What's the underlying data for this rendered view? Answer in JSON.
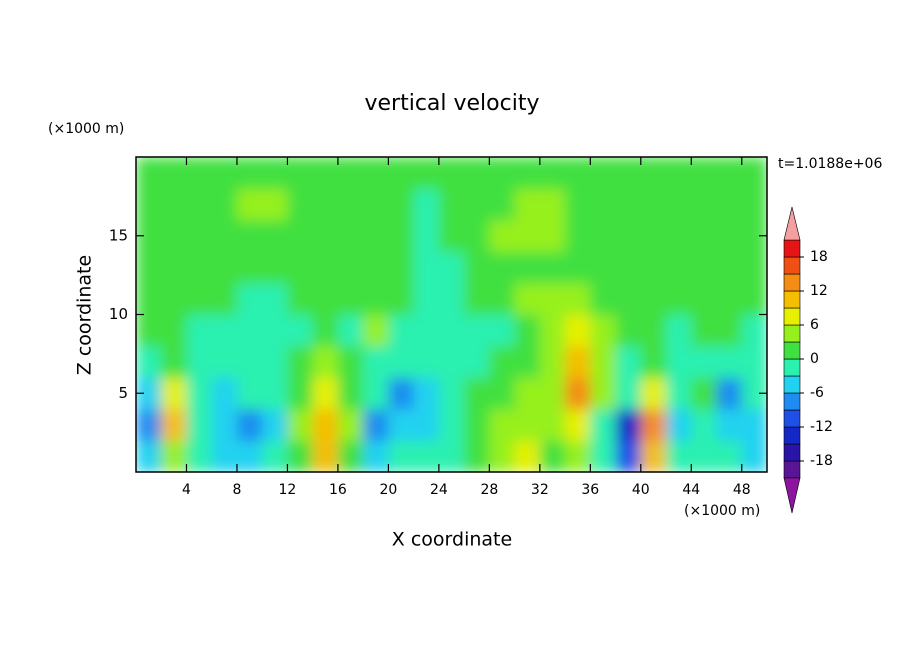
{
  "chart_data": {
    "type": "contour",
    "title": "vertical velocity",
    "xlabel": "X coordinate",
    "ylabel": "Z coordinate",
    "x_unit": "(×1000 m)",
    "y_unit": "(×1000 m)",
    "annotation": "t=1.0188e+06",
    "xlim": [
      0,
      50
    ],
    "ylim": [
      0,
      20
    ],
    "xticks": [
      4,
      8,
      12,
      16,
      20,
      24,
      28,
      32,
      36,
      40,
      44,
      48
    ],
    "yticks": [
      5,
      10,
      15
    ],
    "x": [
      1,
      3,
      5,
      7,
      9,
      11,
      13,
      15,
      17,
      19,
      21,
      23,
      25,
      27,
      29,
      31,
      33,
      35,
      37,
      39,
      41,
      43,
      45,
      47,
      49
    ],
    "z": [
      1,
      3,
      5,
      7,
      9,
      11,
      13,
      15,
      17,
      19
    ],
    "values": [
      [
        -6,
        5,
        -3,
        -4,
        -5,
        -3,
        2,
        9,
        2,
        -4,
        -3,
        -3,
        -2,
        1,
        4,
        7,
        2,
        4,
        -2,
        -10,
        11,
        -2,
        -1,
        -3,
        -4
      ],
      [
        -9,
        9,
        -3,
        -5,
        -8,
        -4,
        3,
        11,
        3,
        -7,
        -6,
        -5,
        -3,
        1,
        4,
        5,
        3,
        8,
        -1,
        -13,
        14,
        -4,
        -3,
        -4,
        -5
      ],
      [
        -6,
        7,
        -2,
        -4,
        -3,
        -3,
        2,
        8,
        2,
        -3,
        -9,
        -4,
        -2,
        1,
        2,
        3,
        3,
        12,
        5,
        -3,
        6,
        -2,
        0,
        -7,
        -3
      ],
      [
        -2,
        2,
        -1,
        -2,
        -2,
        -2,
        0,
        3,
        0,
        -2,
        -3,
        -3,
        -2,
        -1,
        1,
        2,
        4,
        11,
        5,
        -2,
        1,
        -2,
        -1,
        -2,
        -2
      ],
      [
        0,
        1,
        -1,
        -1,
        -2,
        -2,
        -1,
        0,
        -1,
        3,
        -2,
        -3,
        -1,
        -2,
        -1,
        2,
        5,
        7,
        4,
        0,
        0,
        -1,
        0,
        0,
        -1
      ],
      [
        2,
        1,
        0,
        1,
        -1,
        -1,
        0,
        1,
        0,
        1,
        0,
        -2,
        -1,
        0,
        1,
        3,
        3,
        3,
        2,
        1,
        1,
        0,
        1,
        2,
        1
      ],
      [
        2,
        2,
        1,
        1,
        0,
        1,
        1,
        1,
        1,
        0,
        0,
        -2,
        -1,
        1,
        1,
        2,
        2,
        2,
        2,
        1,
        0,
        0,
        1,
        1,
        1
      ],
      [
        2,
        2,
        2,
        2,
        2,
        1,
        1,
        1,
        1,
        1,
        0,
        -1,
        1,
        2,
        3,
        4,
        3,
        1,
        1,
        1,
        1,
        1,
        1,
        2,
        2
      ],
      [
        1,
        1,
        2,
        2,
        3,
        4,
        1,
        1,
        1,
        2,
        0,
        -2,
        1,
        2,
        2,
        3,
        3,
        0,
        1,
        2,
        1,
        1,
        2,
        2,
        1
      ],
      [
        1,
        1,
        1,
        1,
        2,
        1,
        1,
        1,
        1,
        1,
        1,
        0,
        1,
        2,
        1,
        1,
        1,
        1,
        1,
        1,
        1,
        1,
        1,
        1,
        1
      ]
    ],
    "levels": [
      -21,
      -18,
      -15,
      -12,
      -9,
      -6,
      -3,
      0,
      3,
      6,
      9,
      12,
      15,
      18,
      21
    ],
    "colors": [
      "#8c14a0",
      "#5a1496",
      "#2a14a8",
      "#1428c8",
      "#1e50e8",
      "#1e8cf0",
      "#20d2f0",
      "#2cf0b0",
      "#40e040",
      "#96f01e",
      "#e6f000",
      "#f5be00",
      "#f58c14",
      "#f05014",
      "#e61414",
      "#f5a0a0"
    ],
    "cbar_ticks": [
      18,
      12,
      6,
      0,
      -6,
      -12,
      -18
    ]
  }
}
